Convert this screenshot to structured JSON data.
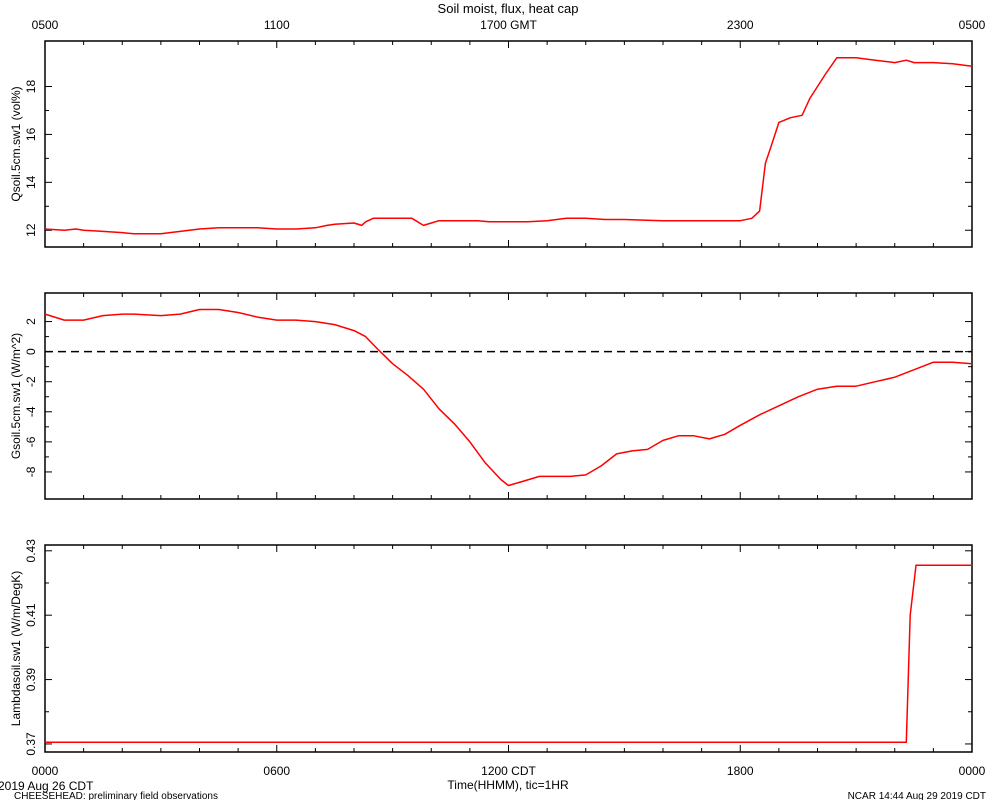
{
  "page": {
    "title": "Soil moist, flux, heat cap",
    "x_axis_label": "Time(HHMM), tic=1HR",
    "date_start_label": "2019 Aug 26 CDT",
    "footer_left": "CHEESEHEAD: preliminary field observations",
    "footer_right": "NCAR 14:44 Aug 29 2019 CDT"
  },
  "colors": {
    "series": "#ff0000",
    "axis": "#000000",
    "zero_line": "#000000"
  },
  "x_axis": {
    "units": "hours since 0000 CDT Aug 26",
    "range": [
      0,
      24
    ],
    "top_ticks": [
      {
        "x": 0,
        "label": "0500"
      },
      {
        "x": 6,
        "label": "1100"
      },
      {
        "x": 12,
        "label": "1700 GMT"
      },
      {
        "x": 18,
        "label": "2300"
      },
      {
        "x": 24,
        "label": "0500"
      }
    ],
    "bottom_ticks": [
      {
        "x": 0,
        "label": "0000"
      },
      {
        "x": 6,
        "label": "0600"
      },
      {
        "x": 12,
        "label": "1200 CDT"
      },
      {
        "x": 18,
        "label": "1800"
      },
      {
        "x": 24,
        "label": "0000"
      }
    ]
  },
  "chart_data": [
    {
      "type": "line",
      "ylabel": "Qsoil.5cm.sw1 (vol%)",
      "ylim": [
        11.3,
        19.9
      ],
      "y_ticks": [
        12,
        14,
        16,
        18
      ],
      "series": [
        {
          "x": [
            0,
            0.5,
            0.8,
            1.0,
            1.5,
            2.0,
            2.3,
            3.0,
            3.5,
            4.0,
            4.5,
            5.0,
            5.5,
            6.0,
            6.5,
            7.0,
            7.3,
            7.5,
            8.0,
            8.2,
            8.3,
            8.5,
            8.8,
            9.5,
            9.8,
            10.0,
            10.2,
            10.5,
            10.8,
            11.2,
            11.5,
            12.0,
            12.5,
            13.0,
            13.5,
            14.0,
            14.5,
            15.0,
            16.0,
            17.0,
            17.5,
            18.0,
            18.3,
            18.5,
            18.65,
            18.8,
            19.0,
            19.3,
            19.6,
            19.8,
            20.0,
            20.2,
            20.5,
            20.8,
            21.0,
            21.5,
            22.0,
            22.3,
            22.5,
            23.0,
            23.5,
            24.0
          ],
          "y": [
            12.05,
            12.0,
            12.05,
            12.0,
            11.95,
            11.9,
            11.85,
            11.85,
            11.95,
            12.05,
            12.1,
            12.1,
            12.1,
            12.05,
            12.05,
            12.1,
            12.2,
            12.25,
            12.3,
            12.2,
            12.35,
            12.5,
            12.5,
            12.5,
            12.2,
            12.3,
            12.4,
            12.4,
            12.4,
            12.4,
            12.35,
            12.35,
            12.35,
            12.4,
            12.5,
            12.5,
            12.45,
            12.45,
            12.4,
            12.4,
            12.4,
            12.4,
            12.5,
            12.8,
            14.8,
            15.5,
            16.5,
            16.7,
            16.8,
            17.5,
            18.0,
            18.5,
            19.2,
            19.2,
            19.2,
            19.1,
            19.0,
            19.1,
            19.0,
            19.0,
            18.95,
            18.85
          ]
        }
      ]
    },
    {
      "type": "line",
      "ylabel": "Gsoil.5cm.sw1 (W/m^2)",
      "ylim": [
        -9.8,
        3.9
      ],
      "y_ticks": [
        2,
        0,
        -2,
        -4,
        -6,
        -8
      ],
      "y_tick_labels": [
        "2",
        "0",
        "-2",
        "-4",
        "-6",
        "-8"
      ],
      "reference_line_y": 0,
      "series": [
        {
          "x": [
            0,
            0.5,
            1.0,
            1.5,
            2.0,
            2.3,
            3.0,
            3.5,
            4.0,
            4.5,
            5.0,
            5.5,
            6.0,
            6.5,
            7.0,
            7.5,
            8.0,
            8.3,
            8.6,
            9.0,
            9.4,
            9.8,
            10.2,
            10.6,
            11.0,
            11.4,
            11.8,
            12.0,
            12.4,
            12.8,
            13.2,
            13.6,
            14.0,
            14.4,
            14.8,
            15.2,
            15.6,
            16.0,
            16.4,
            16.8,
            17.2,
            17.6,
            18.0,
            18.5,
            19.0,
            19.5,
            20.0,
            20.5,
            21.0,
            21.5,
            22.0,
            22.5,
            23.0,
            23.5,
            24.0
          ],
          "y": [
            2.5,
            2.1,
            2.1,
            2.4,
            2.5,
            2.5,
            2.4,
            2.5,
            2.8,
            2.8,
            2.6,
            2.3,
            2.1,
            2.1,
            2.0,
            1.8,
            1.4,
            1.0,
            0.2,
            -0.8,
            -1.6,
            -2.5,
            -3.8,
            -4.8,
            -6.0,
            -7.4,
            -8.5,
            -8.9,
            -8.6,
            -8.3,
            -8.3,
            -8.3,
            -8.2,
            -7.6,
            -6.8,
            -6.6,
            -6.5,
            -5.9,
            -5.6,
            -5.6,
            -5.8,
            -5.5,
            -4.9,
            -4.2,
            -3.6,
            -3.0,
            -2.5,
            -2.3,
            -2.3,
            -2.0,
            -1.7,
            -1.2,
            -0.7,
            -0.7,
            -0.8
          ]
        }
      ]
    },
    {
      "type": "line",
      "ylabel": "Lambdasoil.sw1 (W/m/DegK)",
      "ylim": [
        0.3675,
        0.4318
      ],
      "y_ticks": [
        0.37,
        0.39,
        0.41,
        0.43
      ],
      "y_tick_labels": [
        "0.37",
        "0.39",
        "0.41",
        "0.43"
      ],
      "series": [
        {
          "x": [
            0,
            22.3,
            22.4,
            22.55,
            24.0
          ],
          "y": [
            0.3705,
            0.3705,
            0.41,
            0.4255,
            0.4255
          ]
        }
      ]
    }
  ]
}
